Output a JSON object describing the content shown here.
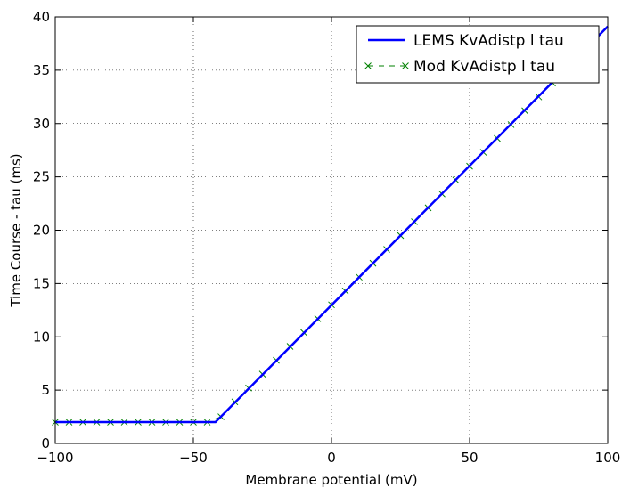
{
  "chart_data": {
    "type": "line",
    "xlabel": "Membrane potential (mV)",
    "ylabel": "Time Course - tau (ms)",
    "xlim": [
      -100,
      100
    ],
    "ylim": [
      0,
      40
    ],
    "xticks": [
      -100,
      -50,
      0,
      50,
      100
    ],
    "xtick_labels": [
      "−100",
      "−50",
      "0",
      "50",
      "100"
    ],
    "yticks": [
      0,
      5,
      10,
      15,
      20,
      25,
      30,
      35,
      40
    ],
    "ytick_labels": [
      "0",
      "5",
      "10",
      "15",
      "20",
      "25",
      "30",
      "35",
      "40"
    ],
    "grid": true,
    "legend_position": "top-right",
    "series": [
      {
        "name": "LEMS KvAdistp l tau",
        "color": "#0000ff",
        "style": "solid",
        "x": [
          -100,
          -42,
          100
        ],
        "y": [
          2,
          2,
          39.1
        ]
      },
      {
        "name": "Mod KvAdistp l tau",
        "color": "#008000",
        "style": "dashed-x",
        "x": [
          -100,
          -95,
          -90,
          -85,
          -80,
          -75,
          -70,
          -65,
          -60,
          -55,
          -50,
          -45,
          -40,
          -35,
          -30,
          -25,
          -20,
          -15,
          -10,
          -5,
          0,
          5,
          10,
          15,
          20,
          25,
          30,
          35,
          40,
          45,
          50,
          55,
          60,
          65,
          70,
          75,
          80
        ],
        "y": [
          2,
          2,
          2,
          2,
          2,
          2,
          2,
          2,
          2,
          2,
          2,
          2,
          2.5,
          3.9,
          5.2,
          6.5,
          7.8,
          9.1,
          10.4,
          11.7,
          13.0,
          14.3,
          15.6,
          16.9,
          18.2,
          19.5,
          20.8,
          22.1,
          23.4,
          24.7,
          26.0,
          27.3,
          28.6,
          29.9,
          31.2,
          32.5,
          33.8
        ]
      }
    ]
  }
}
